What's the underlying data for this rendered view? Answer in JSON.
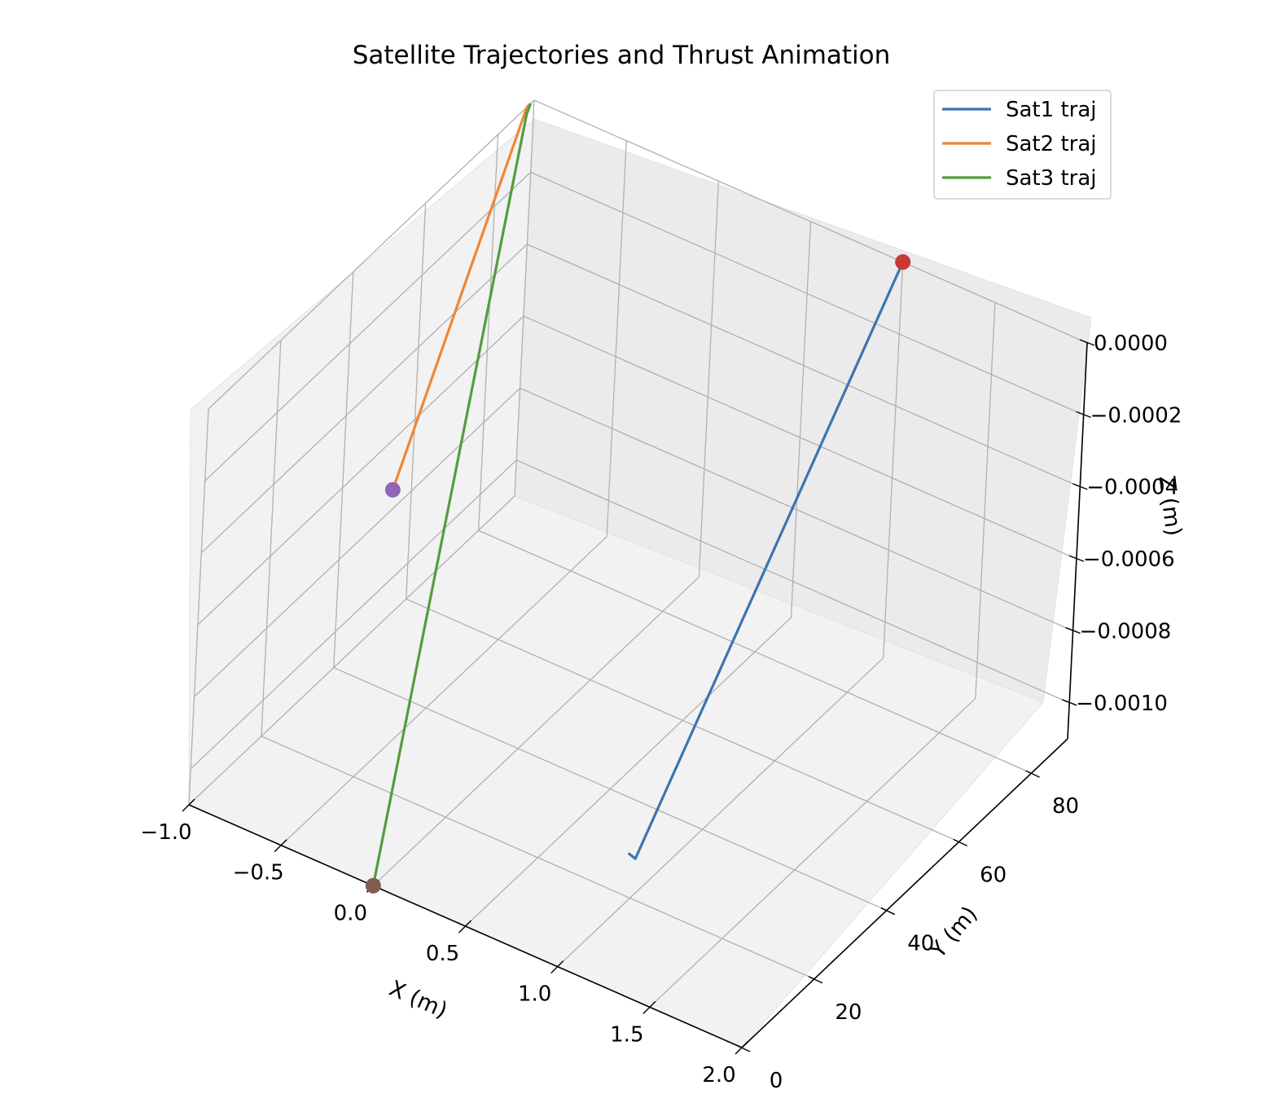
{
  "chart_data": {
    "type": "line3d",
    "title": "Satellite Trajectories and Thrust Animation",
    "xlabel": "X (m)",
    "ylabel": "Y (m)",
    "zlabel": "Z (m)",
    "xlim": [
      -1.0,
      2.0
    ],
    "ylim": [
      0,
      90
    ],
    "zlim": [
      -0.0011,
      0.0
    ],
    "x_ticks": [
      -1.0,
      -0.5,
      0.0,
      0.5,
      1.0,
      1.5,
      2.0
    ],
    "x_tick_labels": [
      "−1.0",
      "−0.5",
      "0.0",
      "0.5",
      "1.0",
      "1.5",
      "2.0"
    ],
    "y_ticks": [
      0,
      20,
      40,
      60,
      80
    ],
    "y_tick_labels": [
      "0",
      "20",
      "40",
      "60",
      "80"
    ],
    "z_ticks": [
      0.0,
      -0.0002,
      -0.0004,
      -0.0006,
      -0.0008,
      -0.001
    ],
    "z_tick_labels": [
      "0.0000",
      "−0.0002",
      "−0.0004",
      "−0.0006",
      "−0.0008",
      "−0.0010"
    ],
    "grid": true,
    "legend_position": "top-right",
    "series": [
      {
        "name": "Sat1 traj",
        "color": "#3b75af",
        "x": [
          0.98,
          1.0,
          1.0
        ],
        "y": [
          20,
          21,
          90
        ],
        "z": [
          -0.00098,
          -0.001,
          0.0
        ],
        "marker": {
          "x": 1.0,
          "y": 90,
          "z": 0.0,
          "color": "#c63a32"
        }
      },
      {
        "name": "Sat2 traj",
        "color": "#ef8636",
        "x": [
          -1.0,
          -1.0,
          0.0
        ],
        "y": [
          89,
          88,
          0
        ],
        "z": [
          0.0,
          0.0,
          0.0
        ],
        "marker": {
          "x": 0.0,
          "y": 0,
          "z": 0.0,
          "color": "#9066b9"
        }
      },
      {
        "name": "Sat3 traj",
        "color": "#519e3e",
        "x": [
          -1.0,
          -1.0,
          0.0
        ],
        "y": [
          89,
          88,
          0
        ],
        "z": [
          0.0,
          -2e-05,
          -0.0011
        ],
        "marker": {
          "x": 0.0,
          "y": 0,
          "z": -0.0011,
          "color": "#845b53"
        }
      }
    ]
  }
}
